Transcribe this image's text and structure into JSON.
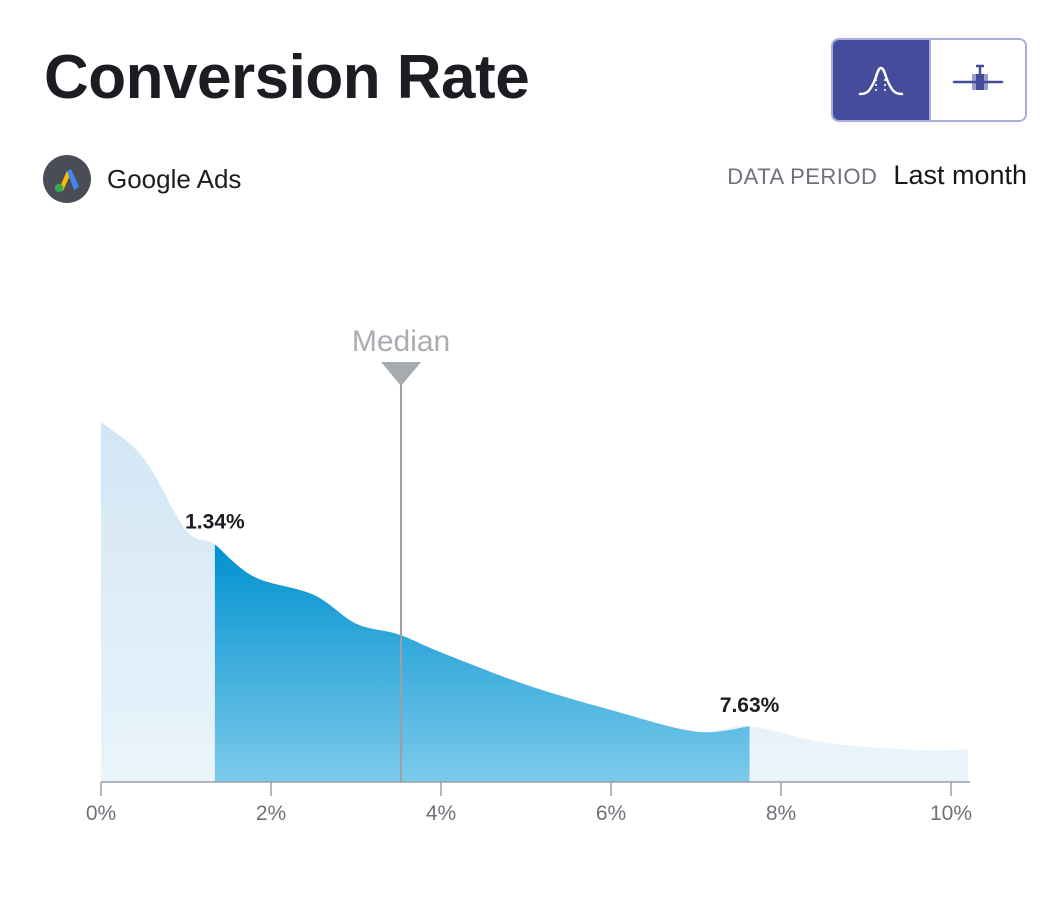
{
  "header": {
    "title": "Conversion Rate",
    "view_toggle": [
      {
        "icon": "distribution-curve-icon",
        "active": true
      },
      {
        "icon": "box-plot-icon",
        "active": false
      }
    ]
  },
  "source": {
    "name": "Google Ads",
    "icon": "google-ads-logo-icon"
  },
  "data_period": {
    "label": "DATA PERIOD",
    "value": "Last month"
  },
  "colors": {
    "accent": "#454c9c",
    "light_fill": "#d6e9f5",
    "dark_fill": "#0096d1",
    "median_line": "#9aa0a6"
  },
  "chart_data": {
    "type": "area",
    "title": "",
    "xlabel": "",
    "ylabel": "",
    "xlim": [
      0,
      10.2
    ],
    "ylim": [
      0,
      1
    ],
    "x_ticks": [
      "0%",
      "2%",
      "4%",
      "6%",
      "8%",
      "10%"
    ],
    "x_tick_values": [
      0,
      2,
      4,
      6,
      8,
      10
    ],
    "series": [
      {
        "x": [
          0,
          0.5,
          1.0,
          1.34,
          1.8,
          2.5,
          3.0,
          3.5,
          4.0,
          5.0,
          6.0,
          7.0,
          7.63,
          8.5,
          9.5,
          10.2
        ],
        "y": [
          1.0,
          0.9,
          0.7,
          0.66,
          0.57,
          0.52,
          0.44,
          0.41,
          0.36,
          0.27,
          0.2,
          0.14,
          0.155,
          0.11,
          0.09,
          0.09
        ]
      }
    ],
    "highlight_range": {
      "start": 1.34,
      "end": 7.63,
      "start_label": "1.34%",
      "end_label": "7.63%"
    },
    "median": {
      "x": 3.53,
      "label": "Median"
    }
  }
}
